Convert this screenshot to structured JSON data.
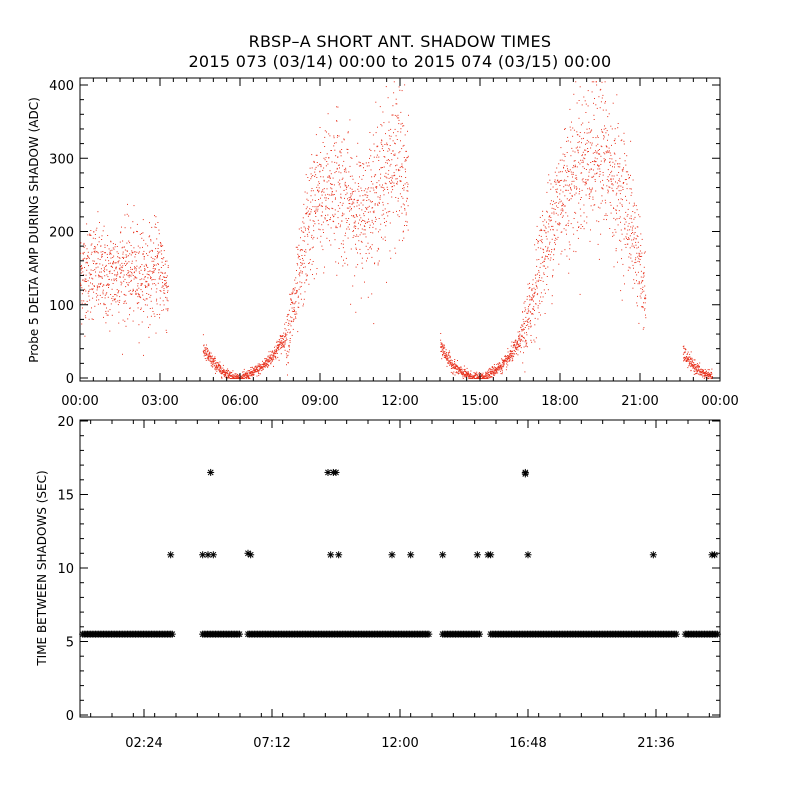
{
  "title_line1": "RBSP–A SHORT ANT. SHADOW TIMES",
  "title_line2": "2015 073 (03/14) 00:00 to 2015 074 (03/15) 00:00",
  "chart_data": [
    {
      "type": "scatter",
      "ylabel": "Probe 5 DELTA AMP DURING SHADOW (ADC)",
      "xlabel": "",
      "xlim": [
        0,
        24
      ],
      "ylim": [
        0,
        400
      ],
      "x_tick_labels": [
        "00:00",
        "03:00",
        "06:00",
        "09:00",
        "12:00",
        "15:00",
        "18:00",
        "21:00",
        "00:00"
      ],
      "y_tick_labels": [
        "0",
        "100",
        "200",
        "300",
        "400"
      ],
      "point_color": "#e8321e",
      "series": [
        {
          "x": [
            0.0,
            0.5,
            1.0,
            1.5,
            2.0,
            2.5,
            3.0,
            3.3,
            4.6,
            4.9,
            5.3,
            5.7,
            6.0,
            6.3,
            6.8,
            7.3,
            7.8,
            8.2,
            8.5,
            8.8,
            9.2,
            9.6,
            10.0,
            10.5,
            11.0,
            11.5,
            11.9,
            12.3,
            13.5,
            13.9,
            14.3,
            14.7,
            15.0,
            15.4,
            15.9,
            16.4,
            16.8,
            17.2,
            17.6,
            18.0,
            18.5,
            19.0,
            19.5,
            20.0,
            20.5,
            20.9,
            21.2,
            22.6,
            22.9,
            23.3,
            23.7
          ],
          "y": [
            140,
            150,
            135,
            150,
            145,
            140,
            150,
            120,
            40,
            25,
            10,
            3,
            0,
            5,
            15,
            35,
            65,
            130,
            200,
            240,
            250,
            270,
            240,
            220,
            250,
            280,
            300,
            250,
            45,
            20,
            8,
            2,
            0,
            8,
            20,
            45,
            80,
            150,
            200,
            250,
            280,
            300,
            310,
            270,
            230,
            170,
            100,
            35,
            20,
            8,
            2
          ]
        }
      ]
    },
    {
      "type": "scatter",
      "ylabel": "TIME BETWEEN SHADOWS (SEC)",
      "xlabel": "",
      "xlim": [
        0,
        24
      ],
      "ylim": [
        0,
        20
      ],
      "x_tick_labels": [
        "02:24",
        "07:12",
        "12:00",
        "16:48",
        "21:36"
      ],
      "y_tick_labels": [
        "0",
        "5",
        "10",
        "15",
        "20"
      ],
      "point_color": "#000000",
      "baseline": {
        "value": 5.5,
        "segments": [
          [
            0.1,
            3.5
          ],
          [
            4.6,
            6.0
          ],
          [
            6.3,
            13.1
          ],
          [
            13.6,
            15.0
          ],
          [
            15.4,
            22.4
          ],
          [
            22.7,
            23.9
          ]
        ]
      },
      "outliers": {
        "x": [
          3.4,
          4.6,
          4.8,
          4.9,
          5.0,
          6.3,
          6.4,
          9.3,
          9.5,
          9.4,
          9.6,
          9.7,
          11.7,
          12.4,
          13.6,
          14.9,
          15.3,
          15.4,
          16.7,
          16.7,
          16.8,
          21.5,
          23.7,
          23.8
        ],
        "y": [
          10.9,
          10.9,
          10.9,
          16.5,
          10.9,
          11.0,
          10.9,
          16.5,
          16.5,
          10.9,
          16.5,
          10.9,
          10.9,
          10.9,
          10.9,
          10.9,
          10.9,
          10.9,
          16.5,
          16.4,
          10.9,
          10.9,
          10.9,
          10.9
        ]
      }
    }
  ]
}
